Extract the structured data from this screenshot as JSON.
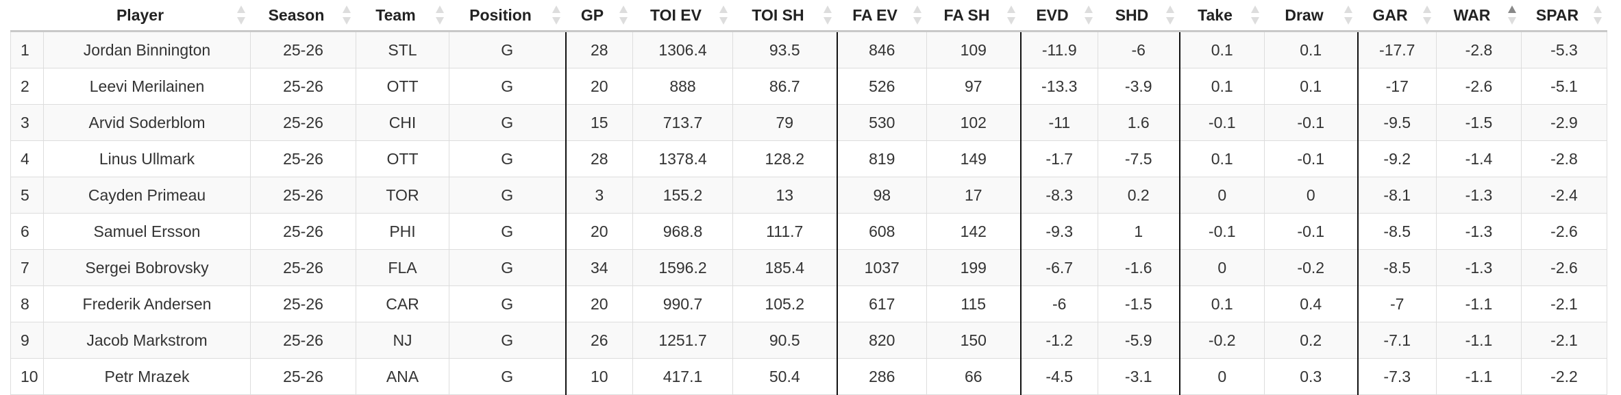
{
  "columns": [
    "",
    "Player",
    "Season",
    "Team",
    "Position",
    "GP",
    "TOI EV",
    "TOI SH",
    "FA EV",
    "FA SH",
    "EVD",
    "SHD",
    "Take",
    "Draw",
    "GAR",
    "WAR",
    "SPAR"
  ],
  "sorted_column": "WAR",
  "sort_direction": "ascending",
  "rows": [
    [
      "1",
      "Jordan Binnington",
      "25-26",
      "STL",
      "G",
      "28",
      "1306.4",
      "93.5",
      "846",
      "109",
      "-11.9",
      "-6",
      "0.1",
      "0.1",
      "-17.7",
      "-2.8",
      "-5.3"
    ],
    [
      "2",
      "Leevi Merilainen",
      "25-26",
      "OTT",
      "G",
      "20",
      "888",
      "86.7",
      "526",
      "97",
      "-13.3",
      "-3.9",
      "0.1",
      "0.1",
      "-17",
      "-2.6",
      "-5.1"
    ],
    [
      "3",
      "Arvid Soderblom",
      "25-26",
      "CHI",
      "G",
      "15",
      "713.7",
      "79",
      "530",
      "102",
      "-11",
      "1.6",
      "-0.1",
      "-0.1",
      "-9.5",
      "-1.5",
      "-2.9"
    ],
    [
      "4",
      "Linus Ullmark",
      "25-26",
      "OTT",
      "G",
      "28",
      "1378.4",
      "128.2",
      "819",
      "149",
      "-1.7",
      "-7.5",
      "0.1",
      "-0.1",
      "-9.2",
      "-1.4",
      "-2.8"
    ],
    [
      "5",
      "Cayden Primeau",
      "25-26",
      "TOR",
      "G",
      "3",
      "155.2",
      "13",
      "98",
      "17",
      "-8.3",
      "0.2",
      "0",
      "0",
      "-8.1",
      "-1.3",
      "-2.4"
    ],
    [
      "6",
      "Samuel Ersson",
      "25-26",
      "PHI",
      "G",
      "20",
      "968.8",
      "111.7",
      "608",
      "142",
      "-9.3",
      "1",
      "-0.1",
      "-0.1",
      "-8.5",
      "-1.3",
      "-2.6"
    ],
    [
      "7",
      "Sergei Bobrovsky",
      "25-26",
      "FLA",
      "G",
      "34",
      "1596.2",
      "185.4",
      "1037",
      "199",
      "-6.7",
      "-1.6",
      "0",
      "-0.2",
      "-8.5",
      "-1.3",
      "-2.6"
    ],
    [
      "8",
      "Frederik Andersen",
      "25-26",
      "CAR",
      "G",
      "20",
      "990.7",
      "105.2",
      "617",
      "115",
      "-6",
      "-1.5",
      "0.1",
      "0.4",
      "-7",
      "-1.1",
      "-2.1"
    ],
    [
      "9",
      "Jacob Markstrom",
      "25-26",
      "NJ",
      "G",
      "26",
      "1251.7",
      "90.5",
      "820",
      "150",
      "-1.2",
      "-5.9",
      "-0.2",
      "0.2",
      "-7.1",
      "-1.1",
      "-2.1"
    ],
    [
      "10",
      "Petr Mrazek",
      "25-26",
      "ANA",
      "G",
      "10",
      "417.1",
      "50.4",
      "286",
      "66",
      "-4.5",
      "-3.1",
      "0",
      "0.3",
      "-7.3",
      "-1.1",
      "-2.2"
    ]
  ]
}
